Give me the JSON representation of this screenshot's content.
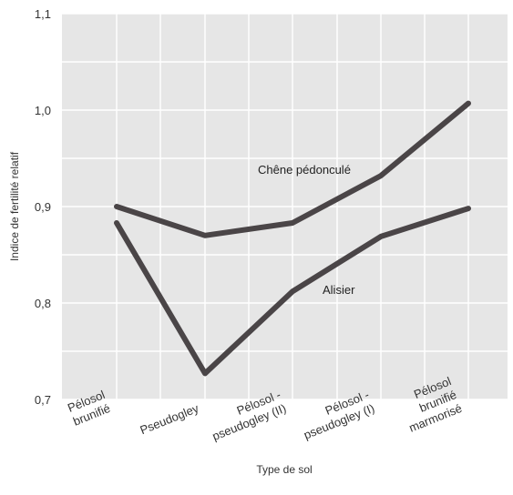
{
  "chart_data": {
    "type": "line",
    "title": "",
    "xlabel": "Type de sol",
    "ylabel": "Indice de fertilité relatif",
    "ylim": [
      0.7,
      1.1
    ],
    "yticks": [
      "0,7",
      "0,8",
      "0,9",
      "1,0",
      "1,1"
    ],
    "categories": [
      "Pélosol brunifié",
      "Pseudogley",
      "Pélosol - pseudogley (II)",
      "Pélosol - pseudogley (I)",
      "Pélosol brunifié marmorisé"
    ],
    "category_labels": [
      [
        "Pélosol",
        "brunifié"
      ],
      [
        "Pseudogley"
      ],
      [
        "Pélosol -",
        "pseudogley (II)"
      ],
      [
        "Pélosol -",
        "pseudogley (I)"
      ],
      [
        "Pélosol",
        "brunifié",
        "marmorisé"
      ]
    ],
    "series": [
      {
        "name": "Chêne pédonculé",
        "values": [
          0.9,
          0.87,
          0.883,
          0.932,
          1.007
        ]
      },
      {
        "name": "Alisier",
        "values": [
          0.883,
          0.727,
          0.812,
          0.869,
          0.898
        ]
      }
    ],
    "grid": true,
    "colors": {
      "plot_background": "#e6e6e6",
      "grid": "#ffffff",
      "line": "#4a4547"
    }
  }
}
